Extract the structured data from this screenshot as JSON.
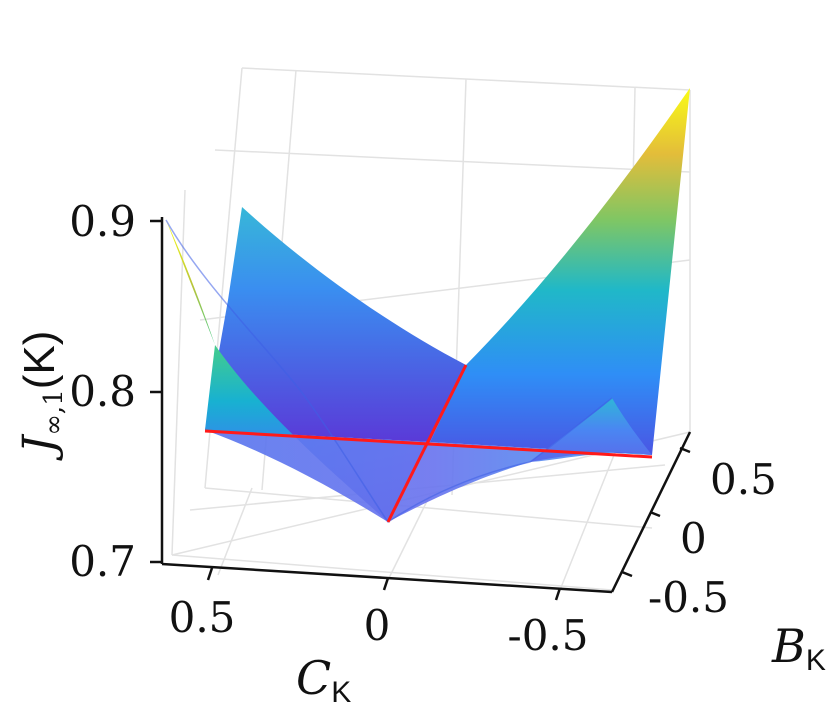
{
  "chart_data": {
    "type": "surface3d",
    "zlabel": {
      "main": "J",
      "sub": "∞,1",
      "tail": "(K)"
    },
    "xlabel": {
      "main": "C",
      "sub": "K"
    },
    "ylabel": {
      "main": "B",
      "sub": "K"
    },
    "zticks": [
      "0.7",
      "0.8",
      "0.9"
    ],
    "xticks": [
      "0.5",
      "0",
      "-0.5"
    ],
    "yticks": [
      "0.5",
      "0",
      "-0.5"
    ],
    "zlim": [
      0.7,
      0.9
    ],
    "xlim": [
      -0.7,
      0.7
    ],
    "ylim": [
      -0.7,
      0.7
    ],
    "grid": true,
    "colormap": [
      "#3e26a8",
      "#4550e8",
      "#2e87f7",
      "#18b1d1",
      "#42cc8e",
      "#b7c43b",
      "#f9fb15"
    ],
    "surface_color": "#5b78ec",
    "highlight_color": "#ff1a1a",
    "surface_samples": {
      "C_edge_0p7": {
        "B_0p7": 0.77,
        "B_0": 0.815,
        "B_neg0p7": 0.9
      },
      "C_0": {
        "B_0p7": 0.905,
        "B_0": 0.77,
        "B_neg0p7": 0.725
      },
      "C_edge_neg0p7": {
        "B_0p7": 0.76,
        "B_0": 0.79,
        "B_neg0p7": 0.94
      }
    }
  }
}
